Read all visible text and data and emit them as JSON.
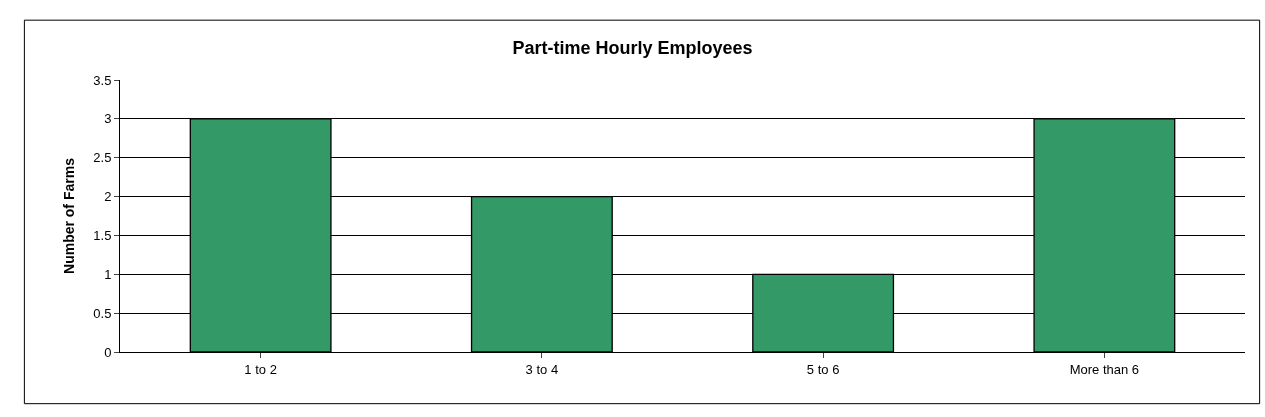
{
  "chart_data": {
    "type": "bar",
    "title": "Part-time Hourly Employees",
    "ylabel": "Number of Farms",
    "categories": [
      "1 to 2",
      "3 to 4",
      "5 to 6",
      "More than 6"
    ],
    "values": [
      3,
      2,
      1,
      3
    ],
    "color": "#339966",
    "ylim": [
      0,
      3.5
    ],
    "yticks": [
      0,
      0.5,
      1,
      1.5,
      2,
      2.5,
      3,
      3.5
    ],
    "grid": "y"
  }
}
